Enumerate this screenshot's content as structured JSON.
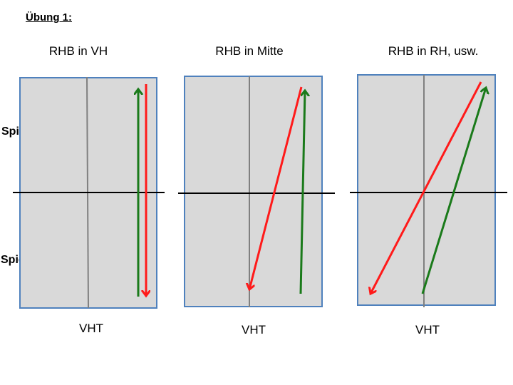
{
  "title": "Übung 1:",
  "panels": [
    {
      "title": "RHB in VH",
      "bottom_label": "VHT"
    },
    {
      "title": "RHB in Mitte",
      "bottom_label": "VHT"
    },
    {
      "title": "RHB in RH, usw.",
      "bottom_label": "VHT"
    }
  ],
  "players": {
    "top": "Spieler B",
    "bottom": "Spieler A"
  },
  "colors": {
    "court": "#d9d9d9",
    "court_border": "#4f81bd",
    "net": "#000000",
    "center_line": "#808080",
    "green_arrow": "#1a7a1a",
    "red_arrow": "#ff1a1a"
  }
}
